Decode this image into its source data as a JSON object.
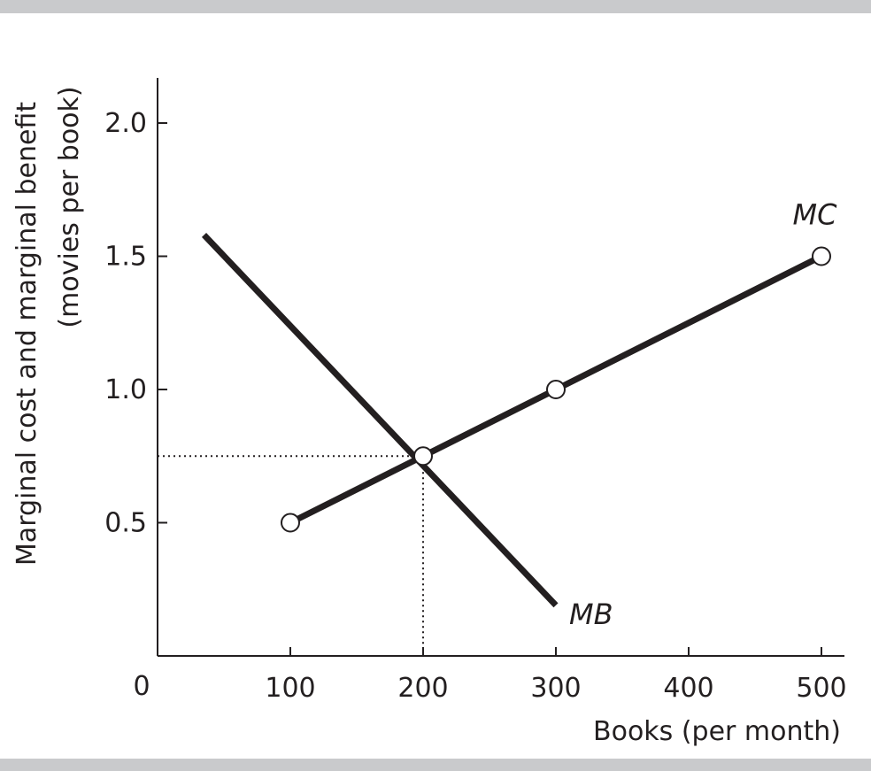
{
  "chart_data": {
    "type": "line",
    "xlabel": "Books (per month)",
    "ylabel_line1": "Marginal cost and marginal benefit",
    "ylabel_line2": "(movies per book)",
    "xlim": [
      0,
      520
    ],
    "ylim": [
      0,
      2.2
    ],
    "x_ticks": [
      100,
      200,
      300,
      400,
      500
    ],
    "x_tick_labels": [
      "100",
      "200",
      "300",
      "400",
      "500"
    ],
    "y_ticks": [
      0.5,
      1.0,
      1.5,
      2.0
    ],
    "y_tick_labels": [
      "0.5",
      "1.0",
      "1.5",
      "2.0"
    ],
    "origin_label": "0",
    "grid": false,
    "series": [
      {
        "name": "MC",
        "points": [
          [
            100,
            0.5
          ],
          [
            200,
            0.75
          ],
          [
            300,
            1.0
          ],
          [
            500,
            1.5
          ]
        ],
        "markers": [
          [
            100,
            0.5
          ],
          [
            200,
            0.75
          ],
          [
            300,
            1.0
          ],
          [
            500,
            1.5
          ]
        ],
        "label_at": [
          495,
          1.62
        ]
      },
      {
        "name": "MB",
        "points": [
          [
            35,
            1.58
          ],
          [
            300,
            0.19
          ]
        ],
        "markers": [],
        "label_at": [
          310,
          0.12
        ]
      }
    ],
    "equilibrium": {
      "x": 200,
      "y": 0.75
    }
  }
}
